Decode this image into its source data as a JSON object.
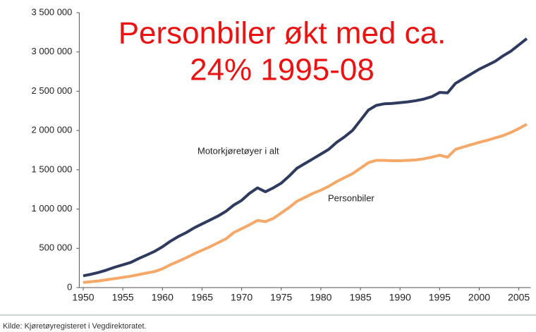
{
  "chart_data": {
    "type": "line",
    "title": [
      "Personbiler økt med ca.",
      "24% 1995-08"
    ],
    "source": "Kilde: Kjøretøyregisteret i Vegdirektoratet.",
    "x": [
      1950,
      1951,
      1952,
      1953,
      1954,
      1955,
      1956,
      1957,
      1958,
      1959,
      1960,
      1961,
      1962,
      1963,
      1964,
      1965,
      1966,
      1967,
      1968,
      1969,
      1970,
      1971,
      1972,
      1973,
      1974,
      1975,
      1976,
      1977,
      1978,
      1979,
      1980,
      1981,
      1982,
      1983,
      1984,
      1985,
      1986,
      1987,
      1988,
      1989,
      1990,
      1991,
      1992,
      1993,
      1994,
      1995,
      1996,
      1997,
      1998,
      1999,
      2000,
      2001,
      2002,
      2003,
      2004,
      2005,
      2006
    ],
    "series": [
      {
        "name": "Motorkjøretøyer i alt",
        "color": "#2e3a5e",
        "values": [
          150000,
          170000,
          195000,
          225000,
          260000,
          290000,
          320000,
          370000,
          415000,
          460000,
          520000,
          590000,
          650000,
          700000,
          760000,
          810000,
          860000,
          910000,
          970000,
          1050000,
          1110000,
          1200000,
          1270000,
          1220000,
          1270000,
          1330000,
          1420000,
          1520000,
          1580000,
          1640000,
          1700000,
          1760000,
          1850000,
          1920000,
          2000000,
          2130000,
          2260000,
          2320000,
          2340000,
          2345000,
          2355000,
          2365000,
          2380000,
          2400000,
          2430000,
          2485000,
          2480000,
          2600000,
          2660000,
          2720000,
          2780000,
          2830000,
          2880000,
          2950000,
          3010000,
          3090000,
          3170000
        ]
      },
      {
        "name": "Personbiler",
        "color": "#f5a868",
        "values": [
          65000,
          75000,
          85000,
          100000,
          115000,
          130000,
          145000,
          165000,
          185000,
          205000,
          240000,
          290000,
          335000,
          380000,
          430000,
          475000,
          520000,
          570000,
          620000,
          700000,
          750000,
          800000,
          855000,
          840000,
          880000,
          950000,
          1020000,
          1100000,
          1150000,
          1200000,
          1240000,
          1290000,
          1350000,
          1400000,
          1450000,
          1520000,
          1590000,
          1620000,
          1620000,
          1615000,
          1615000,
          1620000,
          1625000,
          1640000,
          1660000,
          1685000,
          1660000,
          1760000,
          1790000,
          1820000,
          1850000,
          1875000,
          1905000,
          1935000,
          1975000,
          2025000,
          2080000
        ]
      }
    ],
    "xlim": [
      1949.5,
      2006.5
    ],
    "xticks": [
      1950,
      1955,
      1960,
      1965,
      1970,
      1975,
      1980,
      1985,
      1990,
      1995,
      2000,
      2005
    ],
    "ylim": [
      0,
      3500000
    ],
    "yticks": [
      0,
      {
        "value": 500000,
        "label": "500 000"
      },
      {
        "value": 1000000,
        "label": "1 000 000"
      },
      {
        "value": 1500000,
        "label": "1 500 000"
      },
      {
        "value": 2000000,
        "label": "2 000 000"
      },
      {
        "value": 2500000,
        "label": "2 500 000"
      },
      {
        "value": 3000000,
        "label": "3 000 000"
      },
      {
        "value": 3500000,
        "label": "3 500 000"
      }
    ],
    "grid": false
  }
}
